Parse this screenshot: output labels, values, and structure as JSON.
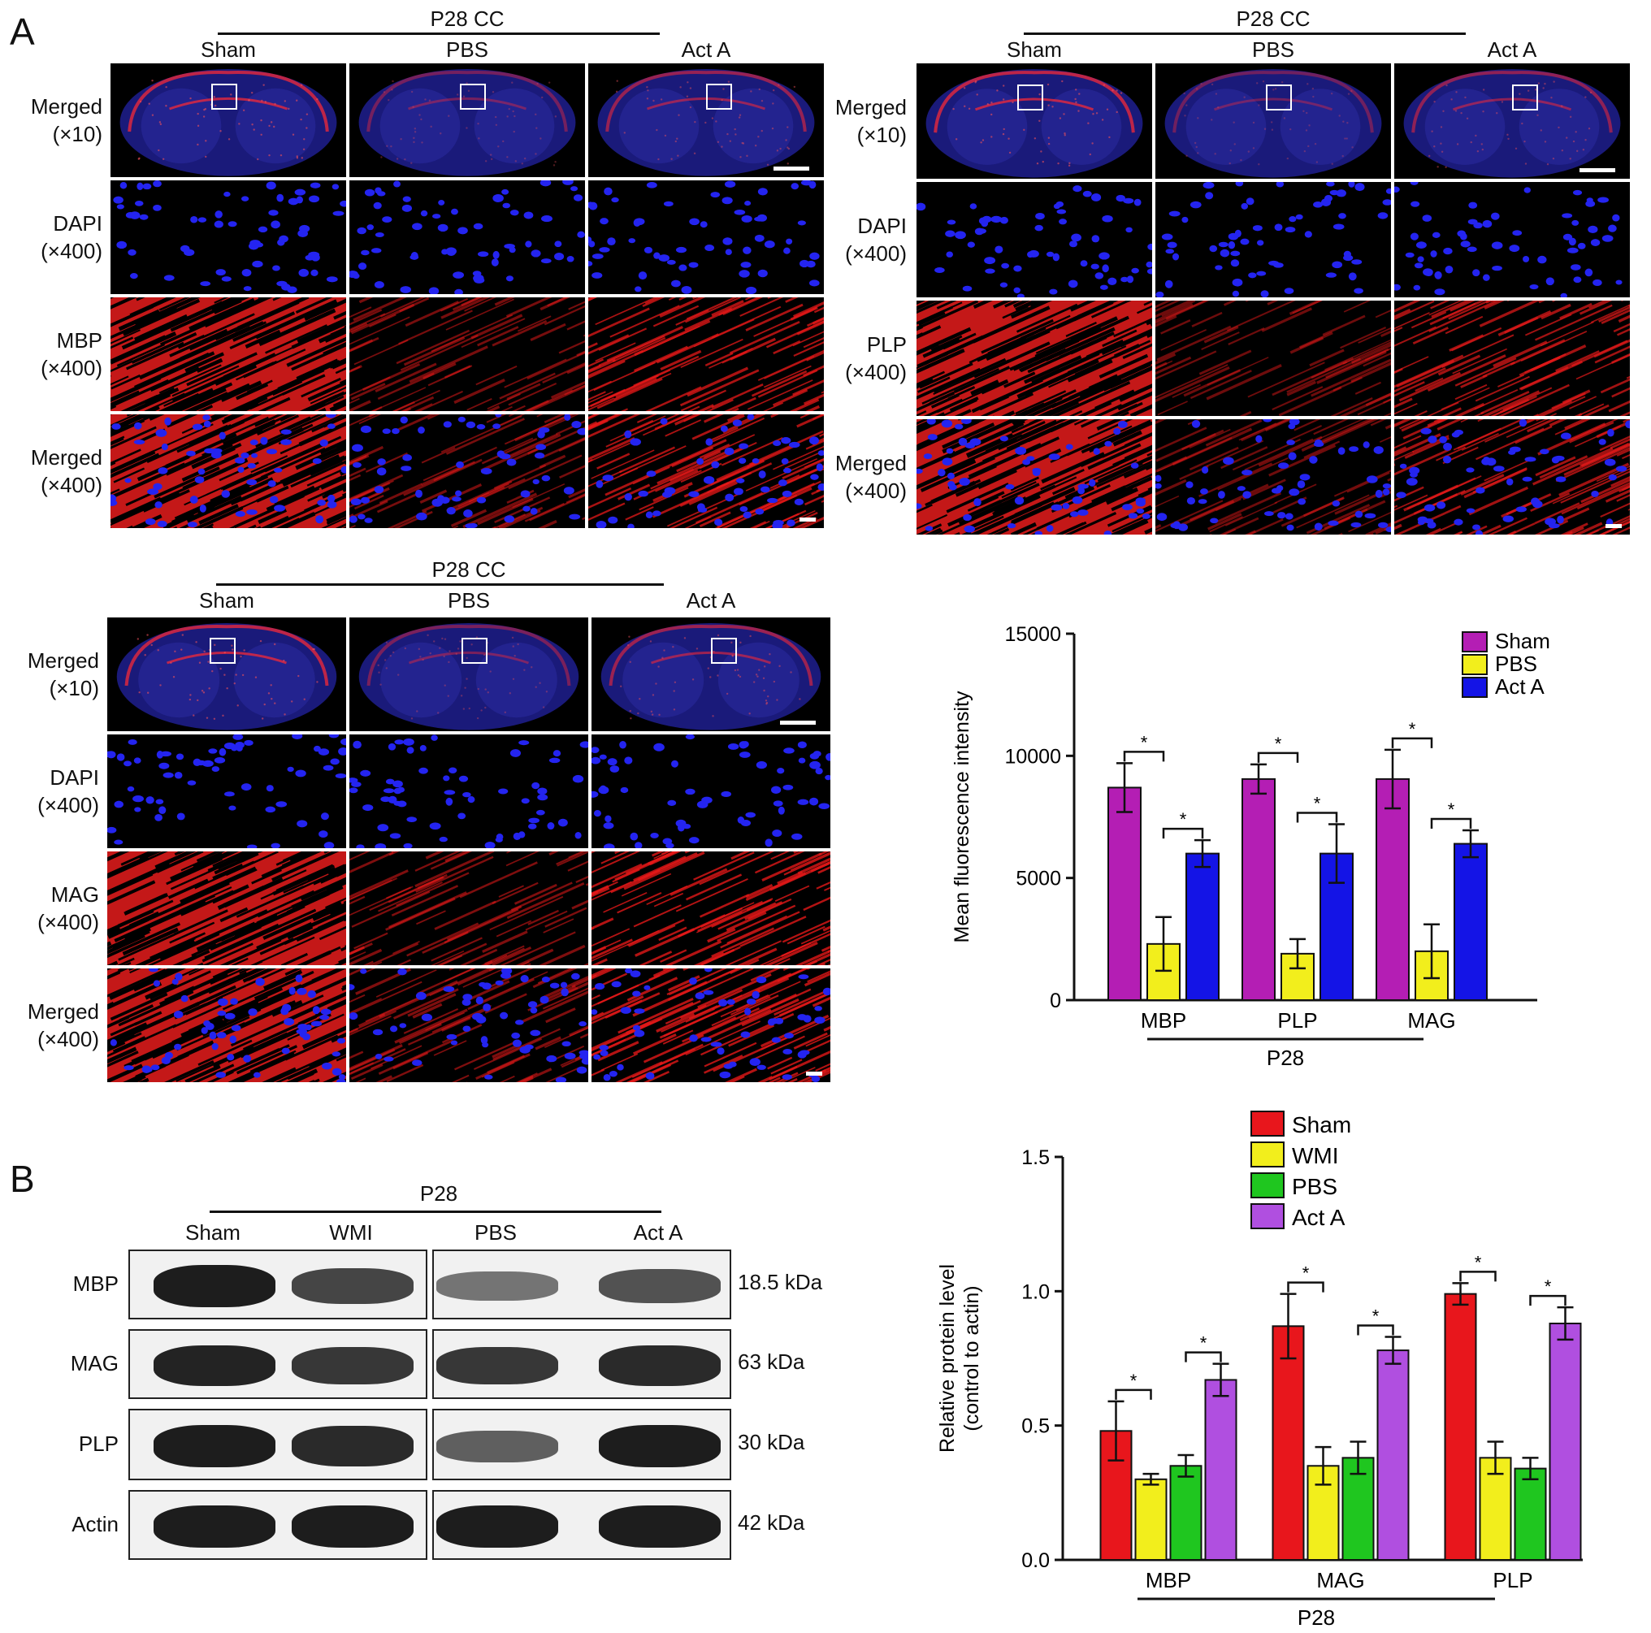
{
  "panel_letters": {
    "a": "A",
    "b": "B"
  },
  "micro_sets": [
    {
      "group": "P28 CC",
      "columns": [
        "Sham",
        "PBS",
        "Act A"
      ],
      "rows": [
        {
          "l1": "Merged",
          "l2": "(×10)"
        },
        {
          "l1": "DAPI",
          "l2": "(×400)"
        },
        {
          "l1": "MBP",
          "l2": "(×400)"
        },
        {
          "l1": "Merged",
          "l2": "(×400)"
        }
      ],
      "stain_intensity": [
        1.0,
        0.35,
        0.65
      ]
    },
    {
      "group": "P28 CC",
      "columns": [
        "Sham",
        "PBS",
        "Act A"
      ],
      "rows": [
        {
          "l1": "Merged",
          "l2": "(×10)"
        },
        {
          "l1": "DAPI",
          "l2": "(×400)"
        },
        {
          "l1": "PLP",
          "l2": "(×400)"
        },
        {
          "l1": "Merged",
          "l2": "(×400)"
        }
      ],
      "stain_intensity": [
        1.0,
        0.3,
        0.6
      ]
    },
    {
      "group": "P28 CC",
      "columns": [
        "Sham",
        "PBS",
        "Act A"
      ],
      "rows": [
        {
          "l1": "Merged",
          "l2": "(×10)"
        },
        {
          "l1": "DAPI",
          "l2": "(×400)"
        },
        {
          "l1": "MAG",
          "l2": "(×400)"
        },
        {
          "l1": "Merged",
          "l2": "(×400)"
        }
      ],
      "stain_intensity": [
        1.0,
        0.4,
        0.7
      ]
    }
  ],
  "blot": {
    "group": "P28",
    "lanes": [
      "Sham",
      "WMI",
      "PBS",
      "Act A"
    ],
    "rows": [
      {
        "name": "MBP",
        "kda": "18.5 kDa"
      },
      {
        "name": "MAG",
        "kda": "63 kDa"
      },
      {
        "name": "PLP",
        "kda": "30 kDa"
      },
      {
        "name": "Actin",
        "kda": "42 kDa"
      }
    ]
  },
  "chart_data": [
    {
      "type": "bar",
      "categories": [
        "MBP",
        "PLP",
        "MAG"
      ],
      "group_label": "P28",
      "ylabel": "Mean fluorescence intensity",
      "ylim": [
        0,
        15000
      ],
      "yticks": [
        0,
        5000,
        10000,
        15000
      ],
      "legend_position": "top-right",
      "series": [
        {
          "name": "Sham",
          "color": "#b41eb4",
          "values": [
            8700,
            9050,
            9050
          ],
          "errors": [
            1000,
            600,
            1200
          ]
        },
        {
          "name": "PBS",
          "color": "#f2ee1c",
          "values": [
            2300,
            1900,
            2000
          ],
          "errors": [
            1100,
            600,
            1100
          ]
        },
        {
          "name": "Act A",
          "color": "#1414e6",
          "values": [
            6000,
            6000,
            6400
          ],
          "errors": [
            550,
            1200,
            550
          ]
        }
      ],
      "significance": [
        {
          "category": 0,
          "from": 0,
          "to": 1,
          "label": "*"
        },
        {
          "category": 0,
          "from": 1,
          "to": 2,
          "label": "*"
        },
        {
          "category": 1,
          "from": 0,
          "to": 1,
          "label": "*"
        },
        {
          "category": 1,
          "from": 1,
          "to": 2,
          "label": "*"
        },
        {
          "category": 2,
          "from": 0,
          "to": 1,
          "label": "*"
        },
        {
          "category": 2,
          "from": 1,
          "to": 2,
          "label": "*"
        }
      ]
    },
    {
      "type": "bar",
      "categories": [
        "MBP",
        "MAG",
        "PLP"
      ],
      "group_label": "P28",
      "ylabel": "Relative protein level",
      "ylabel2": "(control to actin)",
      "ylim": [
        0,
        1.5
      ],
      "yticks": [
        0.0,
        0.5,
        1.0,
        1.5
      ],
      "legend_position": "top",
      "series": [
        {
          "name": "Sham",
          "color": "#e8161c",
          "values": [
            0.48,
            0.87,
            0.99
          ],
          "errors": [
            0.11,
            0.12,
            0.04
          ]
        },
        {
          "name": "WMI",
          "color": "#f2ee1c",
          "values": [
            0.3,
            0.35,
            0.38
          ],
          "errors": [
            0.02,
            0.07,
            0.06
          ]
        },
        {
          "name": "PBS",
          "color": "#1fc61f",
          "values": [
            0.35,
            0.38,
            0.34
          ],
          "errors": [
            0.04,
            0.06,
            0.04
          ]
        },
        {
          "name": "Act A",
          "color": "#b04fe0",
          "values": [
            0.67,
            0.78,
            0.88
          ],
          "errors": [
            0.06,
            0.05,
            0.06
          ]
        }
      ],
      "significance": [
        {
          "category": 0,
          "from": 0,
          "to": 1,
          "label": "*"
        },
        {
          "category": 0,
          "from": 2,
          "to": 3,
          "label": "*"
        },
        {
          "category": 1,
          "from": 0,
          "to": 1,
          "label": "*"
        },
        {
          "category": 1,
          "from": 2,
          "to": 3,
          "label": "*"
        },
        {
          "category": 2,
          "from": 0,
          "to": 1,
          "label": "*"
        },
        {
          "category": 2,
          "from": 2,
          "to": 3,
          "label": "*"
        }
      ]
    }
  ]
}
